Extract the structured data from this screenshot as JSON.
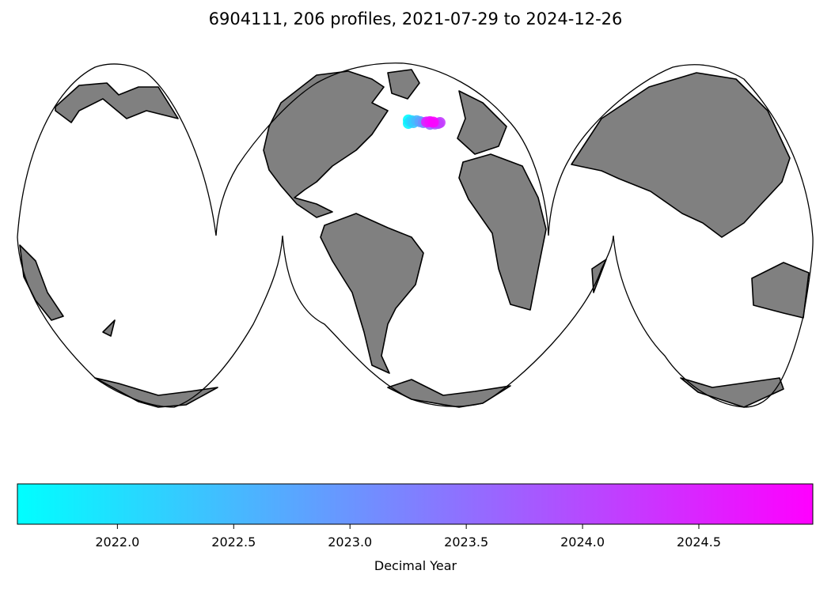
{
  "title": "6904111, 206 profiles, 2021-07-29 to 2024-12-26",
  "map": {
    "projection": "interrupted-goode-homolosine",
    "land_color": "#808080",
    "ocean_color": "#ffffff",
    "coastline_color": "#000000"
  },
  "chart_data": {
    "type": "scatter",
    "title": "6904111, 206 profiles, 2021-07-29 to 2024-12-26",
    "profile_count": 206,
    "date_range": [
      "2021-07-29",
      "2024-12-26"
    ],
    "colormap": "cool",
    "points": [
      {
        "lon": -38,
        "lat": 57.5,
        "year": 2021.6
      },
      {
        "lon": -38,
        "lat": 55.5,
        "year": 2021.7
      },
      {
        "lon": -37,
        "lat": 56.5,
        "year": 2021.9
      },
      {
        "lon": -36,
        "lat": 57.0,
        "year": 2022.1
      },
      {
        "lon": -35,
        "lat": 56.0,
        "year": 2022.3
      },
      {
        "lon": -33,
        "lat": 57.0,
        "year": 2022.5
      },
      {
        "lon": -31,
        "lat": 56.5,
        "year": 2022.8
      },
      {
        "lon": -29,
        "lat": 56.0,
        "year": 2023.1
      },
      {
        "lon": -25,
        "lat": 55.0,
        "year": 2023.5
      },
      {
        "lon": -22,
        "lat": 55.2,
        "year": 2023.8
      },
      {
        "lon": -20,
        "lat": 55.5,
        "year": 2024.0
      },
      {
        "lon": -19,
        "lat": 56.0,
        "year": 2024.2
      },
      {
        "lon": -27,
        "lat": 56.3,
        "year": 2024.6
      },
      {
        "lon": -25,
        "lat": 56.5,
        "year": 2024.8
      },
      {
        "lon": -23,
        "lat": 56.2,
        "year": 2024.95
      }
    ],
    "colorbar": {
      "label": "Decimal Year",
      "range": [
        2021.57,
        2024.99
      ],
      "ticks": [
        2022.0,
        2022.5,
        2023.0,
        2023.5,
        2024.0,
        2024.5
      ],
      "tick_labels": [
        "2022.0",
        "2022.5",
        "2023.0",
        "2023.5",
        "2024.0",
        "2024.5"
      ],
      "color_min": "#00ffff",
      "color_max": "#ff00ff"
    }
  }
}
